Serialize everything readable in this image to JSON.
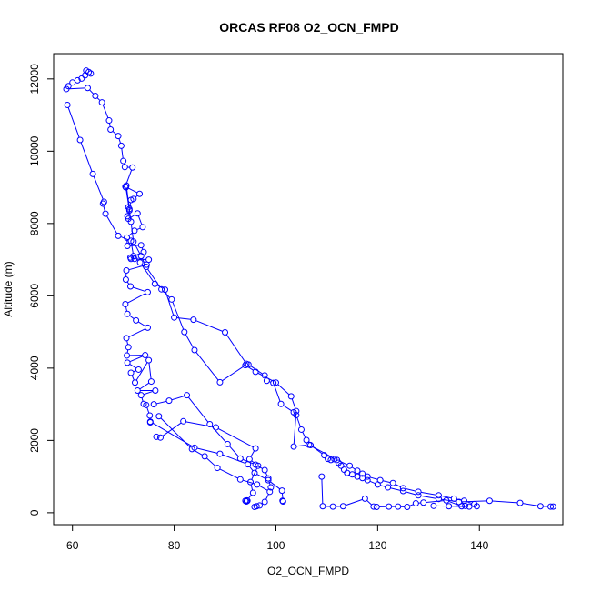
{
  "chart_data": {
    "type": "scatter",
    "title": "ORCAS RF08 O2_OCN_FMPD",
    "xlabel": "O2_OCN_FMPD",
    "ylabel": "Altitude (m)",
    "xlim": [
      56.3,
      156.4
    ],
    "ylim": [
      -330,
      12700
    ],
    "x_ticks": [
      60,
      80,
      100,
      120,
      140
    ],
    "y_ticks": [
      0,
      2000,
      4000,
      6000,
      8000,
      10000,
      12000
    ],
    "x_tick_labels": [
      "60",
      "80",
      "100",
      "120",
      "140"
    ],
    "y_tick_labels": [
      "0",
      "2000",
      "4000",
      "6000",
      "8000",
      "10000",
      "12000"
    ],
    "grid": false,
    "legend": "none",
    "color": "#0000ff",
    "marker": "open-circle",
    "connected": true,
    "series": [
      {
        "points": [
          [
            62.7,
            12230
          ],
          [
            63.2,
            12190
          ],
          [
            63.6,
            12150
          ],
          [
            62.5,
            12100
          ],
          [
            61.8,
            12010
          ],
          [
            61.0,
            11960
          ],
          [
            60.0,
            11900
          ],
          [
            59.2,
            11800
          ],
          [
            58.8,
            11720
          ],
          [
            63.0,
            11750
          ],
          [
            64.5,
            11530
          ],
          [
            65.8,
            11350
          ],
          [
            67.2,
            10850
          ],
          [
            67.5,
            10600
          ],
          [
            69.0,
            10420
          ],
          [
            69.6,
            10150
          ],
          [
            70.0,
            9730
          ],
          [
            70.3,
            9560
          ],
          [
            71.8,
            9550
          ],
          [
            70.4,
            9020
          ],
          [
            73.2,
            8820
          ],
          [
            72.0,
            8680
          ],
          [
            71.5,
            8650
          ],
          [
            71.2,
            8400
          ],
          [
            70.8,
            8200
          ],
          [
            71.0,
            8130
          ],
          [
            72.8,
            8280
          ],
          [
            73.8,
            7900
          ],
          [
            72.2,
            7800
          ],
          [
            70.7,
            7610
          ],
          [
            70.8,
            7380
          ],
          [
            73.5,
            7400
          ],
          [
            74.0,
            7210
          ],
          [
            71.4,
            7060
          ],
          [
            71.5,
            7020
          ],
          [
            72.2,
            7020
          ],
          [
            75.0,
            7000
          ],
          [
            74.6,
            6860
          ],
          [
            70.6,
            6700
          ],
          [
            70.5,
            6450
          ],
          [
            71.4,
            6260
          ],
          [
            74.8,
            6100
          ],
          [
            70.4,
            5770
          ],
          [
            70.8,
            5500
          ],
          [
            72.5,
            5320
          ],
          [
            74.8,
            5120
          ],
          [
            70.6,
            4830
          ],
          [
            71.0,
            4580
          ],
          [
            70.7,
            4350
          ],
          [
            74.3,
            4360
          ],
          [
            70.8,
            4150
          ],
          [
            73.0,
            3960
          ],
          [
            71.5,
            3870
          ],
          [
            72.3,
            3600
          ],
          [
            75.0,
            4220
          ],
          [
            75.5,
            3630
          ],
          [
            72.8,
            3380
          ],
          [
            76.3,
            3380
          ],
          [
            73.5,
            3250
          ],
          [
            74.0,
            3010
          ],
          [
            74.5,
            2980
          ],
          [
            75.2,
            2690
          ],
          [
            75.3,
            2500
          ]
        ]
      },
      {
        "points": [
          [
            59.0,
            11280
          ],
          [
            61.5,
            10310
          ],
          [
            64.0,
            9370
          ],
          [
            66.2,
            8600
          ],
          [
            66.0,
            8550
          ],
          [
            66.5,
            8270
          ],
          [
            69.0,
            7660
          ],
          [
            71.5,
            7520
          ],
          [
            72.0,
            7100
          ],
          [
            73.3,
            6920
          ],
          [
            76.2,
            6330
          ],
          [
            78.2,
            6170
          ],
          [
            80.0,
            5400
          ],
          [
            83.8,
            5340
          ],
          [
            90.0,
            4990
          ],
          [
            94.2,
            4120
          ],
          [
            94.6,
            4100
          ],
          [
            97.8,
            3800
          ],
          [
            98.2,
            3650
          ],
          [
            99.5,
            3590
          ],
          [
            101.0,
            3010
          ],
          [
            103.5,
            2780
          ],
          [
            104.0,
            2700
          ],
          [
            105.0,
            2300
          ],
          [
            106.0,
            2010
          ],
          [
            106.8,
            1870
          ],
          [
            109.5,
            1590
          ],
          [
            110.2,
            1490
          ],
          [
            110.8,
            1460
          ],
          [
            111.5,
            1480
          ],
          [
            112.3,
            1380
          ],
          [
            112.8,
            1300
          ],
          [
            113.4,
            1190
          ],
          [
            114.0,
            1100
          ],
          [
            115.0,
            1060
          ],
          [
            116.0,
            1000
          ],
          [
            117.0,
            960
          ],
          [
            118.0,
            900
          ],
          [
            120.0,
            780
          ],
          [
            122.0,
            700
          ],
          [
            125.0,
            600
          ],
          [
            128.0,
            480
          ],
          [
            132.0,
            380
          ],
          [
            136.0,
            300
          ],
          [
            142.0,
            330
          ],
          [
            148.0,
            270
          ],
          [
            152.0,
            180
          ],
          [
            154.0,
            170
          ],
          [
            154.5,
            170
          ]
        ]
      },
      {
        "points": [
          [
            71.0,
            8450
          ],
          [
            71.2,
            8360
          ],
          [
            70.5,
            9000
          ],
          [
            70.6,
            9050
          ],
          [
            71.5,
            8050
          ],
          [
            72.0,
            7500
          ],
          [
            73.5,
            7100
          ],
          [
            74.5,
            6800
          ],
          [
            77.5,
            6180
          ],
          [
            79.5,
            5900
          ],
          [
            82.0,
            5000
          ],
          [
            84.0,
            4500
          ],
          [
            89.0,
            3610
          ],
          [
            94.0,
            4080
          ],
          [
            96.0,
            3900
          ],
          [
            100.0,
            3600
          ],
          [
            103.0,
            3220
          ],
          [
            104.0,
            2810
          ],
          [
            103.5,
            1830
          ],
          [
            106.5,
            1880
          ],
          [
            112.0,
            1460
          ],
          [
            114.5,
            1300
          ],
          [
            116.0,
            1160
          ],
          [
            117.0,
            1080
          ],
          [
            118.0,
            1000
          ],
          [
            120.5,
            900
          ],
          [
            123.0,
            820
          ],
          [
            125.0,
            680
          ],
          [
            128.0,
            580
          ],
          [
            132.0,
            480
          ],
          [
            135.0,
            390
          ],
          [
            137.0,
            330
          ],
          [
            139.0,
            240
          ],
          [
            138.0,
            170
          ],
          [
            134.0,
            180
          ],
          [
            131.0,
            190
          ]
        ]
      },
      {
        "points": [
          [
            76.5,
            2100
          ],
          [
            77.3,
            2080
          ],
          [
            81.8,
            2530
          ],
          [
            88.2,
            2360
          ],
          [
            96.0,
            1780
          ],
          [
            94.8,
            1480
          ],
          [
            96.5,
            1300
          ],
          [
            95.0,
            850
          ],
          [
            95.5,
            550
          ],
          [
            94.3,
            340
          ],
          [
            94.0,
            330
          ],
          [
            94.2,
            310
          ],
          [
            94.4,
            330
          ]
        ]
      },
      {
        "points": [
          [
            77.0,
            2670
          ],
          [
            83.5,
            1760
          ],
          [
            86.0,
            1560
          ],
          [
            88.5,
            1240
          ],
          [
            93.0,
            920
          ],
          [
            96.3,
            780
          ],
          [
            98.8,
            580
          ],
          [
            97.8,
            300
          ],
          [
            96.8,
            200
          ],
          [
            96.2,
            180
          ],
          [
            95.8,
            160
          ]
        ]
      },
      {
        "points": [
          [
            75.3,
            2520
          ],
          [
            84.0,
            1800
          ],
          [
            89.0,
            1630
          ],
          [
            94.5,
            1340
          ],
          [
            95.8,
            1100
          ],
          [
            98.5,
            900
          ],
          [
            101.2,
            610
          ],
          [
            101.4,
            310
          ],
          [
            101.3,
            330
          ]
        ]
      },
      {
        "points": [
          [
            76.0,
            3000
          ],
          [
            79.0,
            3100
          ],
          [
            82.5,
            3250
          ],
          [
            87.0,
            2450
          ],
          [
            90.5,
            1900
          ],
          [
            93.0,
            1500
          ],
          [
            96.0,
            1330
          ],
          [
            97.8,
            1180
          ],
          [
            98.5,
            950
          ],
          [
            99.0,
            700
          ]
        ]
      },
      {
        "points": [
          [
            109.0,
            1000
          ],
          [
            109.2,
            180
          ],
          [
            111.2,
            170
          ],
          [
            113.2,
            180
          ],
          [
            117.5,
            390
          ],
          [
            119.2,
            170
          ],
          [
            119.8,
            160
          ],
          [
            122.2,
            170
          ],
          [
            124.0,
            170
          ],
          [
            125.8,
            160
          ],
          [
            127.5,
            260
          ],
          [
            129.0,
            280
          ],
          [
            133.5,
            340
          ],
          [
            136.5,
            180
          ],
          [
            137.2,
            190
          ],
          [
            139.5,
            180
          ]
        ]
      }
    ]
  }
}
